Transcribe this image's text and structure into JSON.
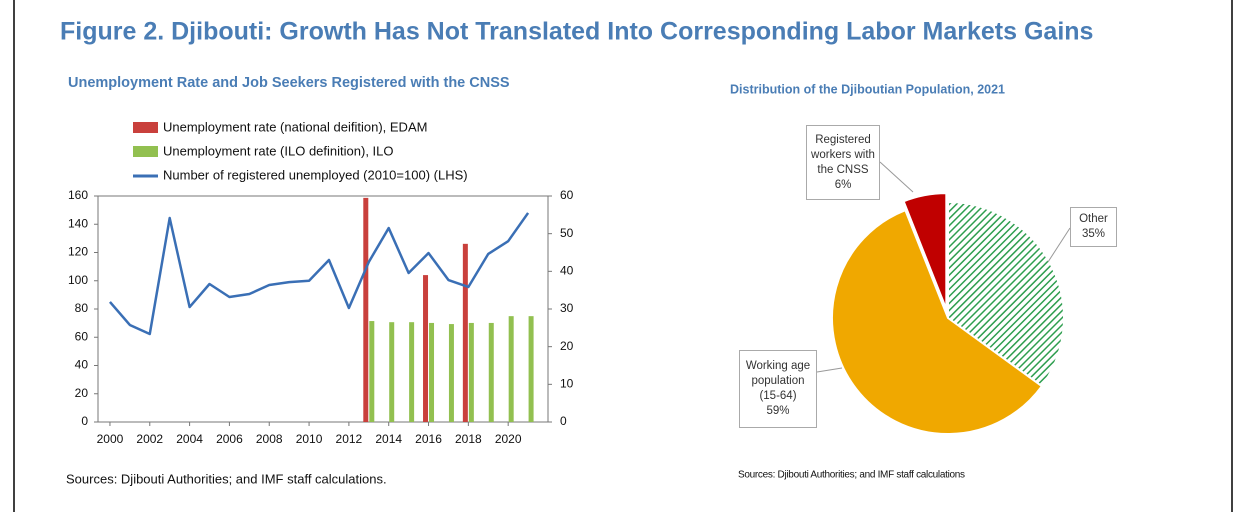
{
  "title": "Figure 2. Djibouti: Growth Has Not Translated Into Corresponding Labor Markets Gains",
  "chart_data": [
    {
      "type": "combo",
      "title": "Unemployment Rate and Job Seekers Registered with the  CNSS",
      "x": [
        2000,
        2001,
        2002,
        2003,
        2004,
        2005,
        2006,
        2007,
        2008,
        2009,
        2010,
        2011,
        2012,
        2013,
        2014,
        2015,
        2016,
        2017,
        2018,
        2019,
        2020,
        2021
      ],
      "xlim": [
        1999.4,
        2022
      ],
      "xticks": [
        2000,
        2002,
        2004,
        2006,
        2008,
        2010,
        2012,
        2014,
        2016,
        2018,
        2020
      ],
      "ylim": [
        0,
        160
      ],
      "yticks": [
        0,
        20,
        40,
        60,
        80,
        100,
        120,
        140,
        160
      ],
      "y2lim": [
        0,
        60
      ],
      "y2ticks": [
        0,
        10,
        20,
        30,
        40,
        50,
        60
      ],
      "grid": false,
      "series": [
        {
          "name": "Unemployment rate (national deifition), EDAM",
          "type": "bar",
          "axis": "y2",
          "color": "#c9403c",
          "values": [
            null,
            null,
            null,
            null,
            null,
            null,
            null,
            null,
            null,
            null,
            null,
            null,
            null,
            59.5,
            null,
            null,
            39,
            null,
            47.3,
            null,
            null,
            null
          ]
        },
        {
          "name": "Unemployment rate (ILO definition), ILO",
          "type": "bar",
          "axis": "y2",
          "color": "#92c050",
          "values": [
            null,
            null,
            null,
            null,
            null,
            null,
            null,
            null,
            null,
            null,
            null,
            null,
            null,
            26.8,
            26.5,
            26.5,
            26.3,
            26,
            26.3,
            26.3,
            28.1,
            28.1
          ]
        },
        {
          "name": "Number of registered unemployed (2010=100) (LHS)",
          "type": "line",
          "axis": "y",
          "color": "#3a6fb5",
          "values": [
            85,
            68.7,
            62.3,
            144.4,
            81.4,
            97.7,
            88.5,
            90.6,
            97,
            99,
            100,
            114.7,
            80.7,
            113.3,
            137.3,
            105.5,
            119.6,
            100.5,
            95.6,
            119,
            128,
            148
          ]
        }
      ],
      "source": "Sources: Djibouti Authorities; and IMF staff calculations."
    },
    {
      "type": "pie",
      "title": "Distribution of the Djiboutian Population, 2021",
      "categories": [
        "Other",
        "Working age population (15-64)",
        "Registered workers with the CNSS"
      ],
      "values": [
        35,
        59,
        6
      ],
      "value_labels": [
        "35%",
        "59%",
        "6%"
      ],
      "colors": [
        "#2e9e4f",
        "#f0a800",
        "#c00000"
      ],
      "hatch": [
        true,
        false,
        false
      ],
      "source": "Sources: Djibouti Authorities; and IMF staff calculations"
    }
  ]
}
